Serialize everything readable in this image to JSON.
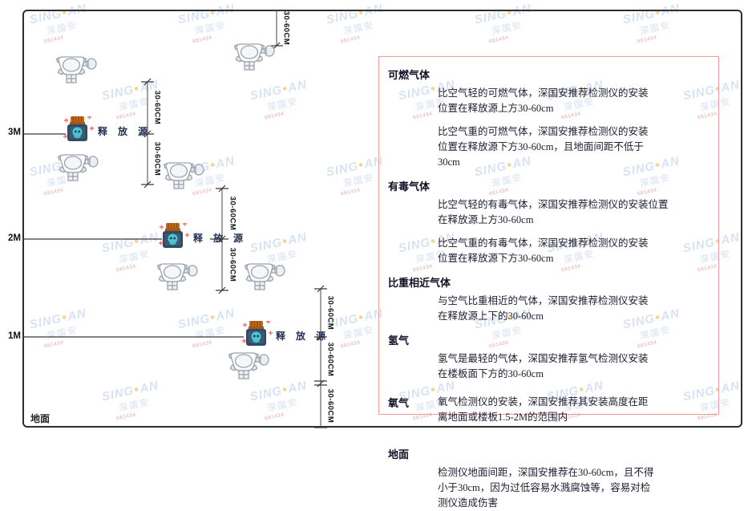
{
  "diagram": {
    "axis_labels": [
      "3M",
      "2M",
      "1M"
    ],
    "ground_label": "地面",
    "release_source_label": "释 放 源",
    "dim_label": "30-60CM"
  },
  "watermark": {
    "brand_left": "SING",
    "brand_dot": "●",
    "brand_right": "AN",
    "brand_cn": "深国安",
    "brand_sub": "681434"
  },
  "panel": {
    "border_color": "#f19b9b",
    "sections": [
      {
        "key": "combustible-gas",
        "heading": "可燃气体",
        "paras": [
          [
            "比空气轻的可燃气体，深国安推荐检测仪的安装",
            "位置在释放源上方30-60cm"
          ],
          [
            "比空气重的可燃气体，深国安推荐检测仪的安装",
            "位置在释放源下方30-60cm，且地面间距不低于",
            "30cm"
          ]
        ]
      },
      {
        "key": "toxic-gas",
        "heading": "有毒气体",
        "paras": [
          [
            "比空气轻的有毒气体，深国安推荐检测仪的安装位置",
            "在释放源上方30-60cm"
          ],
          [
            "比空气重的有毒气体，深国安推荐检测仪的安装",
            "位置在释放源下方30-60cm"
          ]
        ]
      },
      {
        "key": "similar-density-gas",
        "heading": "比重相近气体",
        "paras": [
          [
            "与空气比重相近的气体，深国安推荐检测仪安装",
            "在释放源上下的30-60cm"
          ]
        ]
      },
      {
        "key": "hydrogen",
        "heading": "氢气",
        "paras": [
          [
            "氢气是最轻的气体，深国安推荐氢气检测仪安装",
            "在楼板面下方的30-60cm"
          ]
        ]
      },
      {
        "key": "oxygen",
        "heading": "氧气",
        "inline": true,
        "paras": [
          [
            "氧气检测仪的安装，深国安推荐其安装高度在距",
            "离地面或楼板1.5-2M的范围内"
          ]
        ]
      },
      {
        "key": "ground",
        "heading": "地面",
        "paras": [
          [
            "检测仪地面间距，深国安推荐在30-60cm，且不得",
            "小于30cm，因为过低容易水溅腐蚀等，容易对检",
            "测仪造成伤害"
          ]
        ]
      }
    ]
  },
  "colors": {
    "panel_border": "#f19b9b",
    "frame_border": "#2e2e2e",
    "source_cap": "#c46a1d",
    "source_body": "#2f4a63",
    "source_face": "#4cc5cd",
    "watermark_blue": "#b9cbe8",
    "watermark_yellow": "#f2b33d",
    "watermark_red": "#dc8f8f"
  }
}
